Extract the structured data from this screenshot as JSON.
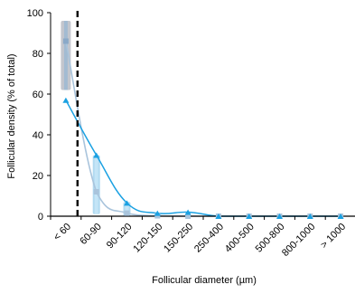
{
  "chart_data": {
    "type": "line",
    "xlabel": "Follicular diameter (µm)",
    "ylabel": "Follicular density (% of total)",
    "categories": [
      "< 60",
      "60-90",
      "90-120",
      "120-150",
      "150-250",
      "250-400",
      "400-500",
      "500-800",
      "800-1000",
      "> 1000"
    ],
    "ylim": [
      0,
      100
    ],
    "yticks": [
      0,
      20,
      40,
      60,
      80,
      100
    ],
    "series": [
      {
        "marker": "triangle",
        "color": "#1BA1E2",
        "values": [
          57,
          30,
          6.5,
          1.5,
          2,
          0,
          0,
          0,
          0,
          0
        ]
      },
      {
        "marker": "square",
        "color": "#A9C4DC",
        "values": [
          86,
          12,
          1.5,
          0.2,
          0,
          0,
          0,
          0,
          0,
          0
        ],
        "error_range": [
          [
            62,
            96
          ],
          [
            1,
            30
          ],
          [
            0,
            7
          ],
          [
            0,
            1
          ],
          [
            0,
            0.5
          ],
          [
            0,
            0
          ],
          [
            0,
            0
          ],
          [
            0,
            0
          ],
          [
            0,
            0
          ],
          [
            0,
            0
          ]
        ]
      }
    ],
    "threshold_line": {
      "between": [
        "< 60",
        "60-90"
      ],
      "style": "dashed"
    },
    "grid": false,
    "legend": "none"
  }
}
